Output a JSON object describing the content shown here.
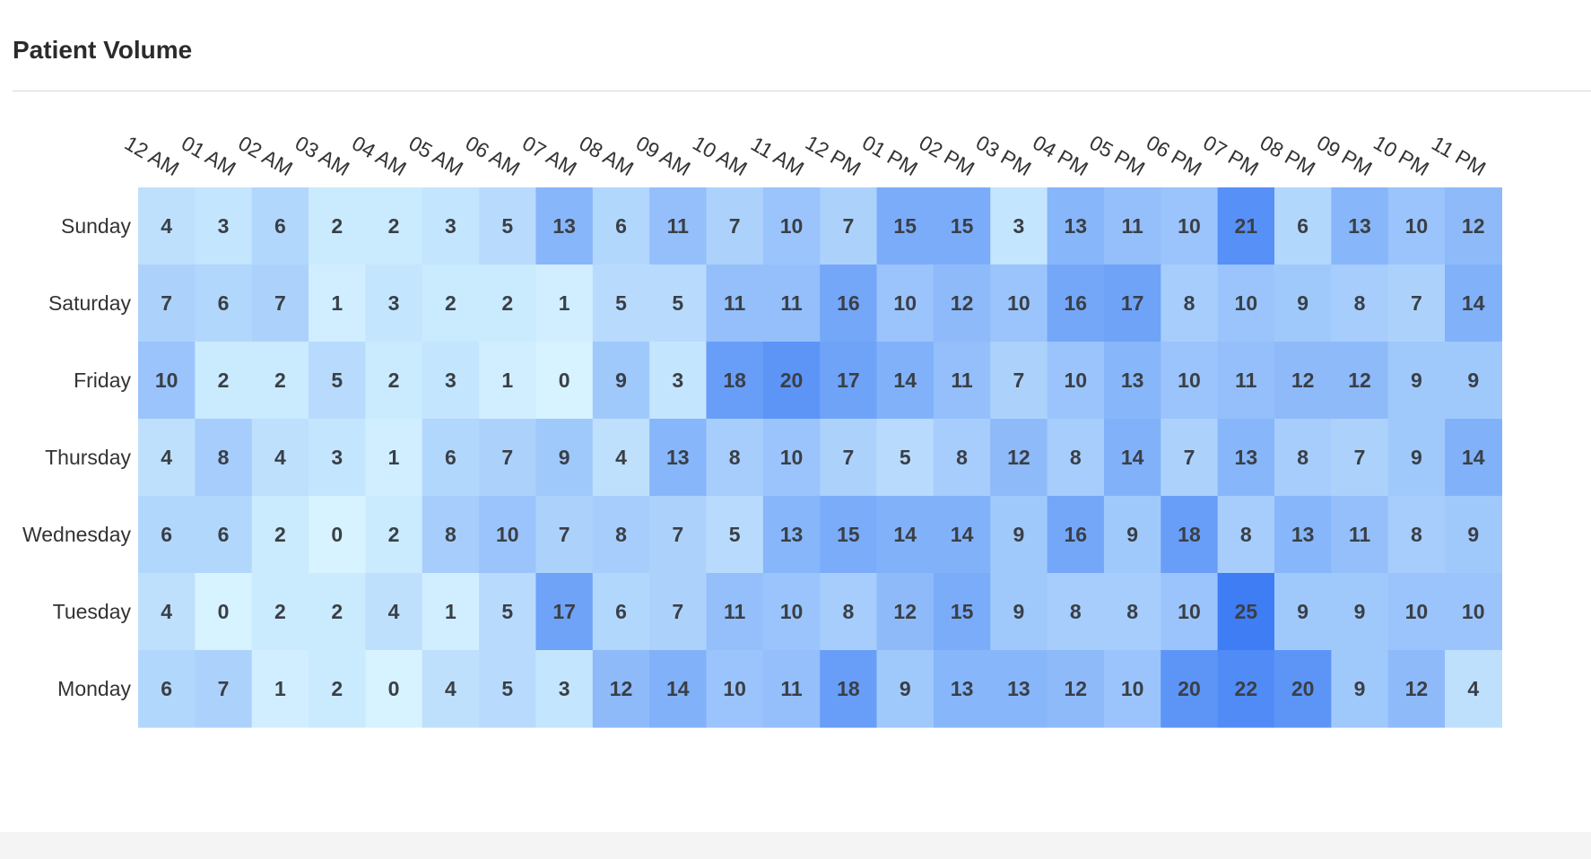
{
  "panel": {
    "title": "Patient Volume"
  },
  "colors": {
    "low": "#d6f3ff",
    "high": "#3f7df5",
    "cell_text": "#3a3f46",
    "axis_text": "#333333"
  },
  "chart_data": {
    "type": "heatmap",
    "title": "Patient Volume",
    "x_categories": [
      "12 AM",
      "01 AM",
      "02 AM",
      "03 AM",
      "04 AM",
      "05 AM",
      "06 AM",
      "07 AM",
      "08 AM",
      "09 AM",
      "10 AM",
      "11 AM",
      "12 PM",
      "01 PM",
      "02 PM",
      "03 PM",
      "04 PM",
      "05 PM",
      "06 PM",
      "07 PM",
      "08 PM",
      "09 PM",
      "10 PM",
      "11 PM"
    ],
    "y_categories": [
      "Sunday",
      "Saturday",
      "Friday",
      "Thursday",
      "Wednesday",
      "Tuesday",
      "Monday"
    ],
    "values": [
      [
        4,
        3,
        6,
        2,
        2,
        3,
        5,
        13,
        6,
        11,
        7,
        10,
        7,
        15,
        15,
        3,
        13,
        11,
        10,
        21,
        6,
        13,
        10,
        12
      ],
      [
        7,
        6,
        7,
        1,
        3,
        2,
        2,
        1,
        5,
        5,
        11,
        11,
        16,
        10,
        12,
        10,
        16,
        17,
        8,
        10,
        9,
        8,
        7,
        14
      ],
      [
        10,
        2,
        2,
        5,
        2,
        3,
        1,
        0,
        9,
        3,
        18,
        20,
        17,
        14,
        11,
        7,
        10,
        13,
        10,
        11,
        12,
        12,
        9,
        9
      ],
      [
        4,
        8,
        4,
        3,
        1,
        6,
        7,
        9,
        4,
        13,
        8,
        10,
        7,
        5,
        8,
        12,
        8,
        14,
        7,
        13,
        8,
        7,
        9,
        14
      ],
      [
        6,
        6,
        2,
        0,
        2,
        8,
        10,
        7,
        8,
        7,
        5,
        13,
        15,
        14,
        14,
        9,
        16,
        9,
        18,
        8,
        13,
        11,
        8,
        9
      ],
      [
        4,
        0,
        2,
        2,
        4,
        1,
        5,
        17,
        6,
        7,
        11,
        10,
        8,
        12,
        15,
        9,
        8,
        8,
        10,
        25,
        9,
        9,
        10,
        10
      ],
      [
        6,
        7,
        1,
        2,
        0,
        4,
        5,
        3,
        12,
        14,
        10,
        11,
        18,
        9,
        13,
        13,
        12,
        10,
        20,
        22,
        20,
        9,
        12,
        4
      ]
    ],
    "value_range": [
      0,
      25
    ],
    "xlabel": "",
    "ylabel": "",
    "legend": "none"
  }
}
